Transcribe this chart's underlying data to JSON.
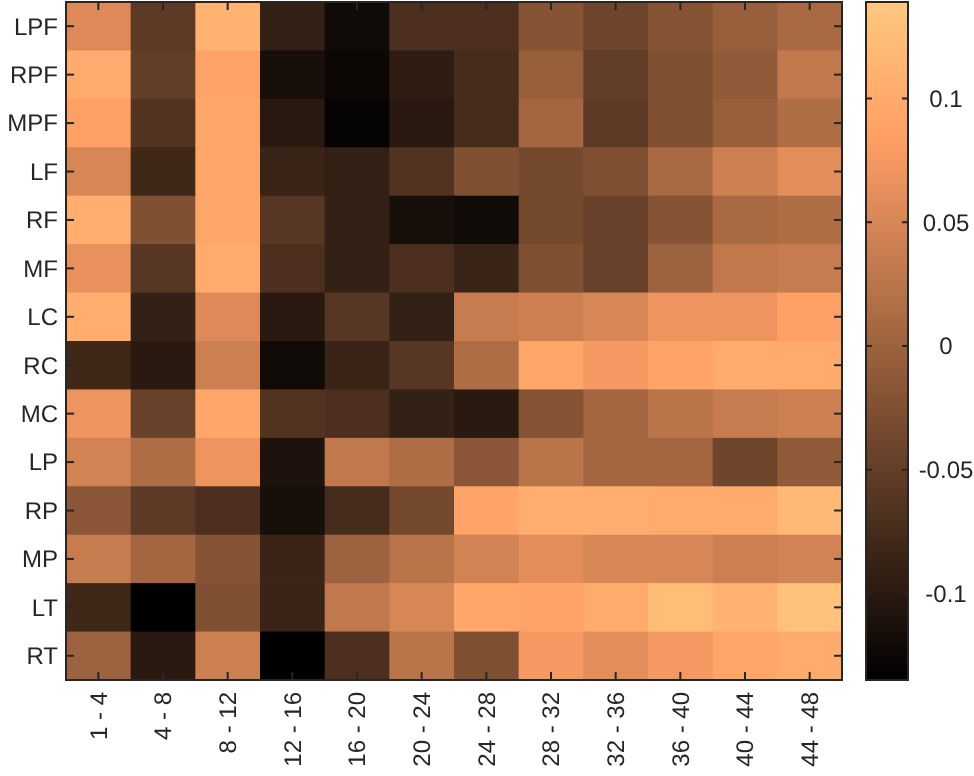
{
  "chart_data": {
    "type": "heatmap",
    "categories": [
      "1 - 4",
      "4 - 8",
      "8 - 12",
      "12 - 16",
      "16 - 20",
      "20 - 24",
      "24 - 28",
      "28 - 32",
      "32 - 36",
      "36 - 40",
      "40 - 44",
      "44 - 48"
    ],
    "y_categories": [
      "LPF",
      "RPF",
      "MPF",
      "LF",
      "RF",
      "MF",
      "LC",
      "RC",
      "MC",
      "LP",
      "RP",
      "MP",
      "LT",
      "RT"
    ],
    "cells": [
      [
        0.055,
        -0.055,
        0.11,
        -0.09,
        -0.12,
        -0.07,
        -0.07,
        -0.02,
        -0.04,
        -0.02,
        -0.005,
        0.01
      ],
      [
        0.1,
        -0.05,
        0.09,
        -0.115,
        -0.125,
        -0.095,
        -0.075,
        -0.005,
        -0.05,
        -0.025,
        -0.01,
        0.03
      ],
      [
        0.085,
        -0.065,
        0.095,
        -0.1,
        -0.13,
        -0.1,
        -0.075,
        0.005,
        -0.055,
        -0.025,
        -0.005,
        0.015
      ],
      [
        0.05,
        -0.08,
        0.095,
        -0.085,
        -0.09,
        -0.065,
        -0.025,
        -0.035,
        -0.025,
        0.01,
        0.04,
        0.06
      ],
      [
        0.105,
        -0.025,
        0.095,
        -0.06,
        -0.09,
        -0.115,
        -0.12,
        -0.035,
        -0.045,
        -0.02,
        0.01,
        0.015
      ],
      [
        0.065,
        -0.06,
        0.1,
        -0.07,
        -0.09,
        -0.07,
        -0.085,
        -0.025,
        -0.045,
        0.0,
        0.03,
        0.035
      ],
      [
        0.105,
        -0.09,
        0.055,
        -0.1,
        -0.06,
        -0.09,
        0.035,
        0.04,
        0.05,
        0.07,
        0.07,
        0.085
      ],
      [
        -0.08,
        -0.1,
        0.04,
        -0.12,
        -0.085,
        -0.06,
        0.015,
        0.095,
        0.075,
        0.09,
        0.1,
        0.1
      ],
      [
        0.07,
        -0.045,
        0.095,
        -0.065,
        -0.07,
        -0.09,
        -0.1,
        -0.02,
        0.005,
        0.025,
        0.035,
        0.04
      ],
      [
        0.045,
        0.015,
        0.07,
        -0.11,
        0.03,
        0.015,
        -0.015,
        0.025,
        0.005,
        0.005,
        -0.04,
        -0.01
      ],
      [
        -0.015,
        -0.055,
        -0.07,
        -0.115,
        -0.075,
        -0.035,
        0.09,
        0.105,
        0.105,
        0.1,
        0.1,
        0.12
      ],
      [
        0.035,
        0.005,
        -0.02,
        -0.085,
        0.0,
        0.025,
        0.045,
        0.06,
        0.05,
        0.05,
        0.04,
        0.045
      ],
      [
        -0.08,
        -0.135,
        -0.025,
        -0.085,
        0.03,
        0.05,
        0.095,
        0.09,
        0.1,
        0.125,
        0.11,
        0.13
      ],
      [
        0.0,
        -0.1,
        0.04,
        -0.135,
        -0.07,
        0.025,
        -0.025,
        0.075,
        0.06,
        0.075,
        0.095,
        0.1
      ]
    ],
    "clim": [
      -0.135,
      0.139
    ],
    "cticks": [
      -0.1,
      -0.05,
      0,
      0.05,
      0.1
    ]
  }
}
